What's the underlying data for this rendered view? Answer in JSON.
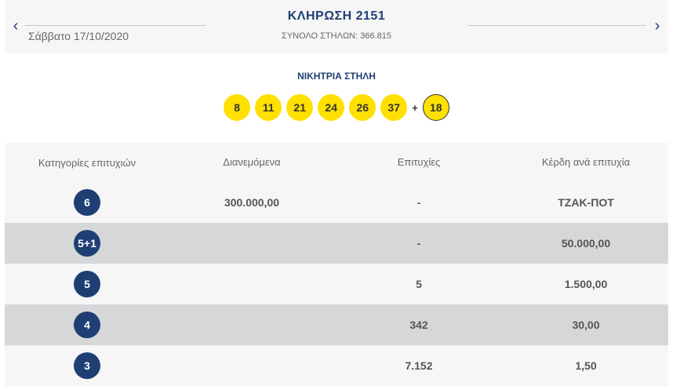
{
  "header": {
    "title": "ΚΛΗΡΩΣΗ 2151",
    "date": "Σάββατο 17/10/2020",
    "total_columns": "ΣΥΝΟΛΟ ΣΤΗΛΩΝ: 366.815",
    "prev_icon": "‹",
    "next_icon": "›"
  },
  "winning": {
    "title": "ΝΙΚΗΤΡΙΑ ΣΤΗΛΗ",
    "numbers": [
      "8",
      "11",
      "21",
      "24",
      "26",
      "37"
    ],
    "plus": "+",
    "bonus": "18",
    "ball_color": "#ffe000"
  },
  "table": {
    "headers": [
      "Κατηγορίες επιτυχιών",
      "Διανεμόμενα",
      "Επιτυχίες",
      "Κέρδη ανά επιτυχία"
    ],
    "rows": [
      {
        "category": "6",
        "distributed": "300.000,00",
        "winners": "-",
        "prize": "ΤΖΑΚ-ΠΟΤ"
      },
      {
        "category": "5+1",
        "distributed": "",
        "winners": "-",
        "prize": "50.000,00"
      },
      {
        "category": "5",
        "distributed": "",
        "winners": "5",
        "prize": "1.500,00"
      },
      {
        "category": "4",
        "distributed": "",
        "winners": "342",
        "prize": "30,00"
      },
      {
        "category": "3",
        "distributed": "",
        "winners": "7.152",
        "prize": "1,50"
      }
    ],
    "category_color": "#1f3f74"
  }
}
